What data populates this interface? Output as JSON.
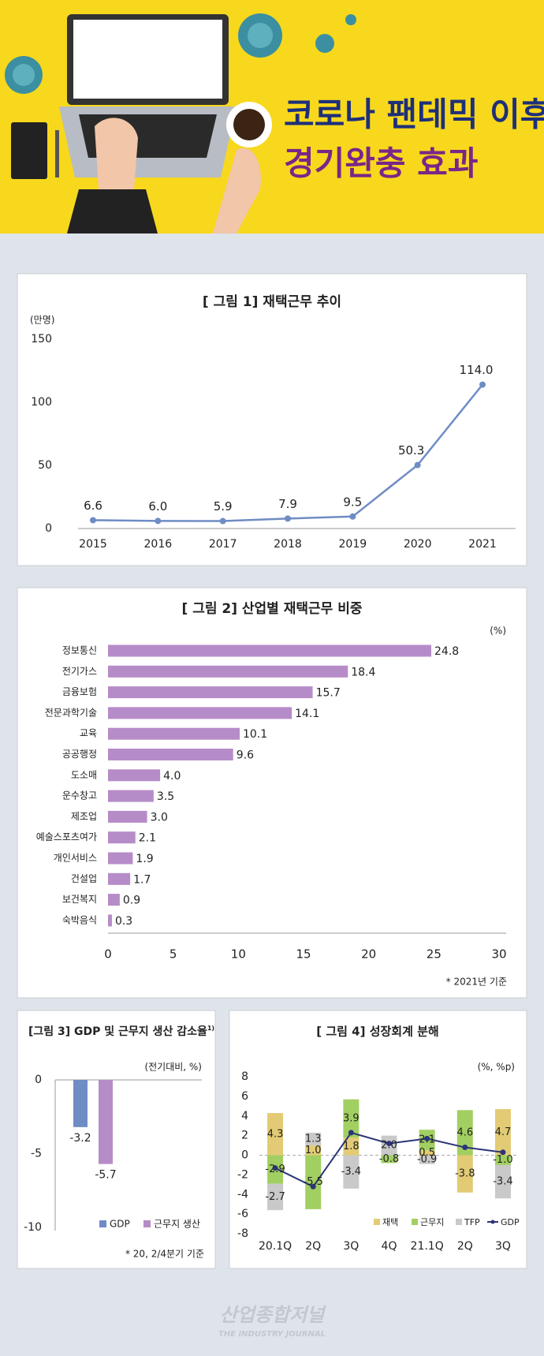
{
  "header": {
    "title": [
      "코로나 팬데믹 이후",
      "경기완충 효과"
    ]
  },
  "chart_data": [
    {
      "type": "line",
      "title": "[ 그림 1] 재택근무 추이",
      "y_unit": "(만명)",
      "categories": [
        "2015",
        "2016",
        "2017",
        "2018",
        "2019",
        "2020",
        "2021"
      ],
      "values": [
        6.6,
        6.0,
        5.9,
        7.9,
        9.5,
        50.3,
        114.0
      ],
      "value_labels": [
        "6.6",
        "6.0",
        "5.9",
        "7.9",
        "9.5",
        "50.3",
        "114.0"
      ],
      "color": "#6f8cc4",
      "ylim": [
        0,
        150
      ],
      "yticks": [
        0,
        50,
        100,
        150
      ],
      "grid": false
    },
    {
      "type": "barh",
      "title": "[ 그림 2] 산업별 재택근무 비중",
      "unit": "(%)",
      "categories": [
        "정보통신",
        "전기가스",
        "금융보험",
        "전문과학기술",
        "교육",
        "공공행정",
        "도소매",
        "운수창고",
        "제조업",
        "예술스포츠여가",
        "개인서비스",
        "건설업",
        "보건복지",
        "숙박음식"
      ],
      "values": [
        24.8,
        18.4,
        15.7,
        14.1,
        10.1,
        9.6,
        4.0,
        3.5,
        3.0,
        2.1,
        1.9,
        1.7,
        0.9,
        0.3
      ],
      "value_labels": [
        "24.8",
        "18.4",
        "15.7",
        "14.1",
        "10.1",
        "9.6",
        "4.0",
        "3.5",
        "3.0",
        "2.1",
        "1.9",
        "1.7",
        "0.9",
        "0.3"
      ],
      "color": "#b68cc8",
      "xlim": [
        0,
        30
      ],
      "xticks": [
        0,
        5,
        10,
        15,
        20,
        25,
        30
      ],
      "note": "* 2021년 기준"
    },
    {
      "type": "bar",
      "title": "[그림 3] GDP 및 근무지 생산 감소율",
      "title_note": "1)",
      "unit": "(전기대비, %)",
      "series": [
        {
          "name": "GDP",
          "color": "#6f8cc4",
          "values": [
            -3.2
          ]
        },
        {
          "name": "근무지 생산",
          "color": "#b68cc8",
          "values": [
            -5.7
          ]
        }
      ],
      "ylim": [
        -10,
        0
      ],
      "yticks": [
        0,
        -5,
        -10
      ],
      "note": "* 20, 2/4분기 기준"
    },
    {
      "type": "stackedbar",
      "title": "[ 그림 4] 성장회계 분해",
      "unit": "(%, %p)",
      "categories": [
        "20.1Q",
        "2Q",
        "3Q",
        "4Q",
        "21.1Q",
        "2Q",
        "3Q"
      ],
      "series": [
        {
          "name": "재택",
          "color": "#e2cb74",
          "values": [
            4.3,
            1.0,
            1.8,
            null,
            0.5,
            -3.8,
            4.7
          ],
          "value_labels": [
            "4.3",
            "1.0",
            "1.8",
            null,
            "0.5",
            "-3.8",
            "4.7"
          ]
        },
        {
          "name": "근무지",
          "color": "#a2cf62",
          "values": [
            -2.9,
            -5.5,
            3.9,
            -0.8,
            2.1,
            4.6,
            -1.0
          ],
          "value_labels": [
            "-2.9",
            "-5.5",
            "3.9",
            "-0.8",
            "2.1",
            "4.6",
            "-1.0"
          ]
        },
        {
          "name": "TFP",
          "color": "#c9c9c9",
          "values": [
            -2.7,
            1.3,
            -3.4,
            2.0,
            -0.9,
            null,
            -3.4
          ],
          "value_labels": [
            "-2.7",
            "1.3",
            "-3.4",
            "2.0",
            "-0.9",
            null,
            "-3.4"
          ]
        },
        {
          "name": "GDP",
          "color": "#2b3578",
          "kind": "line",
          "values": [
            -1.3,
            -3.2,
            2.3,
            1.2,
            1.7,
            0.8,
            0.3
          ]
        }
      ],
      "ylim": [
        -8,
        8
      ],
      "yticks": [
        8,
        6,
        4,
        2,
        0,
        -2,
        -4,
        -6,
        -8
      ]
    }
  ],
  "footer": {
    "logo": "산업종합저널",
    "tagline": "THE INDUSTRY JOURNAL"
  }
}
